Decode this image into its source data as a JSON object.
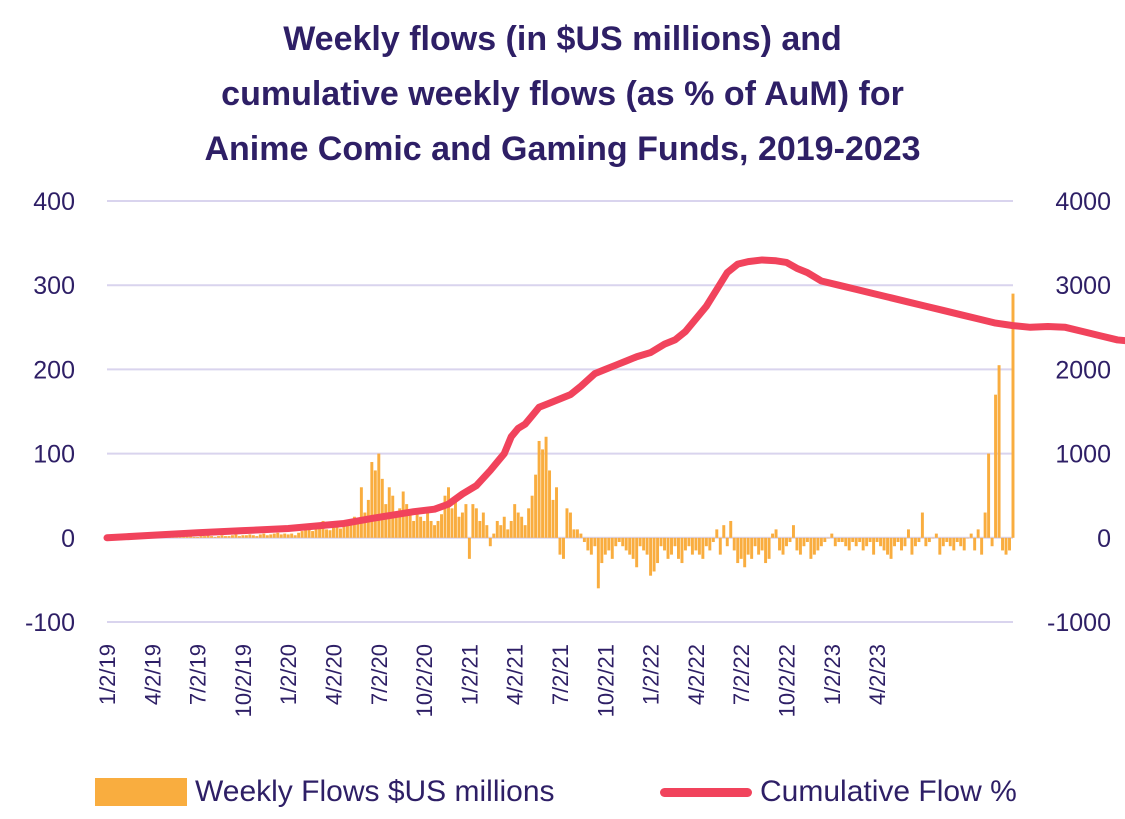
{
  "chart_data": {
    "type": "bar+line",
    "title_lines": [
      "Weekly flows (in $US millions) and",
      "cumulative weekly flows (as % of AuM) for",
      "Anime Comic and Gaming Funds, 2019-2023"
    ],
    "colors": {
      "bars": "#f9ad3f",
      "line": "#f1435c",
      "grid": "#d9d4ee",
      "text": "#2e1f66"
    },
    "grid": true,
    "legend_position": "bottom",
    "y_left": {
      "ylim": [
        -100,
        400
      ],
      "ticks": [
        -100,
        0,
        100,
        200,
        300,
        400
      ]
    },
    "y_right": {
      "ylim": [
        -1000,
        4000
      ],
      "ticks": [
        -1000,
        0,
        1000,
        2000,
        3000,
        4000
      ]
    },
    "x_ticks": [
      "1/2/19",
      "4/2/19",
      "7/2/19",
      "10/2/19",
      "1/2/20",
      "4/2/20",
      "7/2/20",
      "10/2/20",
      "1/2/21",
      "4/2/21",
      "7/2/21",
      "10/2/21",
      "1/2/22",
      "4/2/22",
      "7/2/22",
      "10/2/22",
      "1/2/23",
      "4/2/23"
    ],
    "series": [
      {
        "name": "Weekly Flows $US millions",
        "type": "bar",
        "axis": "left",
        "x_start": "1/2/19",
        "x_step_days": 7,
        "values": [
          0,
          1,
          1,
          0,
          1,
          1,
          0,
          2,
          1,
          1,
          2,
          1,
          0,
          1,
          2,
          1,
          1,
          2,
          1,
          1,
          2,
          3,
          1,
          2,
          2,
          1,
          1,
          2,
          2,
          3,
          2,
          1,
          2,
          3,
          2,
          2,
          3,
          4,
          2,
          3,
          3,
          4,
          3,
          2,
          4,
          5,
          3,
          4,
          5,
          6,
          4,
          5,
          4,
          5,
          3,
          6,
          8,
          10,
          12,
          8,
          15,
          12,
          20,
          10,
          9,
          12,
          14,
          11,
          18,
          16,
          20,
          25,
          18,
          60,
          30,
          45,
          90,
          80,
          100,
          70,
          40,
          60,
          50,
          30,
          35,
          55,
          40,
          30,
          20,
          30,
          25,
          20,
          30,
          20,
          15,
          20,
          28,
          50,
          60,
          35,
          45,
          25,
          30,
          40,
          -25,
          40,
          35,
          20,
          30,
          15,
          -10,
          5,
          20,
          15,
          25,
          10,
          20,
          40,
          30,
          25,
          15,
          35,
          50,
          75,
          115,
          105,
          120,
          80,
          45,
          60,
          -20,
          -25,
          35,
          30,
          10,
          10,
          5,
          -5,
          -15,
          -20,
          -10,
          -60,
          -30,
          -20,
          -15,
          -25,
          -10,
          -5,
          -10,
          -15,
          -20,
          -25,
          -35,
          -10,
          -15,
          -20,
          -45,
          -40,
          -30,
          -10,
          -15,
          -25,
          -20,
          -10,
          -25,
          -30,
          -15,
          -10,
          -20,
          -15,
          -20,
          -25,
          -10,
          -15,
          -5,
          10,
          -20,
          15,
          -10,
          20,
          -15,
          -30,
          -25,
          -35,
          -20,
          -25,
          -10,
          -20,
          -15,
          -30,
          -25,
          5,
          10,
          -15,
          -20,
          -10,
          -5,
          15,
          -15,
          -20,
          -10,
          -5,
          -25,
          -20,
          -15,
          -10,
          -5,
          0,
          5,
          -10,
          -5,
          -5,
          -10,
          -15,
          -5,
          -10,
          -5,
          -15,
          -10,
          -5,
          -20,
          -5,
          -10,
          -15,
          -20,
          -25,
          -10,
          -5,
          -15,
          -10,
          10,
          -20,
          -10,
          -5,
          30,
          -10,
          -5,
          0,
          5,
          -20,
          -10,
          -5,
          -10,
          -15,
          -5,
          -10,
          -15,
          0,
          5,
          -15,
          10,
          -20,
          30,
          100,
          -10,
          170,
          205,
          -15,
          -20,
          -15,
          290
        ]
      },
      {
        "name": "Cumulative Flow %",
        "type": "line",
        "axis": "right",
        "x_start": "1/2/19",
        "x_step_days": 7,
        "points": [
          [
            0,
            0
          ],
          [
            13,
            30
          ],
          [
            26,
            60
          ],
          [
            39,
            85
          ],
          [
            52,
            110
          ],
          [
            60,
            140
          ],
          [
            68,
            170
          ],
          [
            76,
            230
          ],
          [
            82,
            270
          ],
          [
            88,
            310
          ],
          [
            94,
            340
          ],
          [
            98,
            400
          ],
          [
            102,
            520
          ],
          [
            106,
            620
          ],
          [
            110,
            800
          ],
          [
            112,
            900
          ],
          [
            114,
            1000
          ],
          [
            116,
            1200
          ],
          [
            118,
            1300
          ],
          [
            120,
            1350
          ],
          [
            122,
            1450
          ],
          [
            124,
            1550
          ],
          [
            127,
            1600
          ],
          [
            130,
            1650
          ],
          [
            133,
            1700
          ],
          [
            136,
            1800
          ],
          [
            140,
            1950
          ],
          [
            143,
            2000
          ],
          [
            146,
            2050
          ],
          [
            149,
            2100
          ],
          [
            152,
            2150
          ],
          [
            156,
            2200
          ],
          [
            160,
            2300
          ],
          [
            163,
            2350
          ],
          [
            166,
            2450
          ],
          [
            169,
            2600
          ],
          [
            172,
            2750
          ],
          [
            175,
            2950
          ],
          [
            178,
            3150
          ],
          [
            181,
            3250
          ],
          [
            184,
            3280
          ],
          [
            188,
            3300
          ],
          [
            192,
            3290
          ],
          [
            195,
            3270
          ],
          [
            198,
            3200
          ],
          [
            201,
            3150
          ],
          [
            205,
            3050
          ],
          [
            210,
            3000
          ],
          [
            215,
            2950
          ],
          [
            220,
            2900
          ],
          [
            225,
            2850
          ],
          [
            230,
            2800
          ],
          [
            235,
            2750
          ],
          [
            240,
            2700
          ],
          [
            245,
            2650
          ],
          [
            250,
            2600
          ],
          [
            255,
            2550
          ],
          [
            260,
            2520
          ],
          [
            265,
            2500
          ],
          [
            270,
            2510
          ],
          [
            275,
            2500
          ],
          [
            280,
            2450
          ],
          [
            285,
            2400
          ],
          [
            290,
            2350
          ],
          [
            295,
            2330
          ],
          [
            300,
            2320
          ],
          [
            305,
            2300
          ],
          [
            310,
            2250
          ],
          [
            315,
            2220
          ],
          [
            320,
            2200
          ],
          [
            325,
            2190
          ],
          [
            330,
            2180
          ],
          [
            335,
            2160
          ],
          [
            340,
            2150
          ],
          [
            345,
            2150
          ],
          [
            350,
            2140
          ],
          [
            355,
            2120
          ],
          [
            358,
            2050
          ],
          [
            362,
            2060
          ],
          [
            366,
            2080
          ],
          [
            370,
            2070
          ],
          [
            374,
            2060
          ],
          [
            378,
            2040
          ],
          [
            382,
            2020
          ],
          [
            386,
            2000
          ],
          [
            388,
            2000
          ],
          [
            390,
            2050
          ],
          [
            392,
            2200
          ],
          [
            394,
            2450
          ],
          [
            396,
            2750
          ],
          [
            398,
            2780
          ],
          [
            400,
            2700
          ],
          [
            402,
            2800
          ],
          [
            404,
            3200
          ]
        ]
      }
    ]
  }
}
